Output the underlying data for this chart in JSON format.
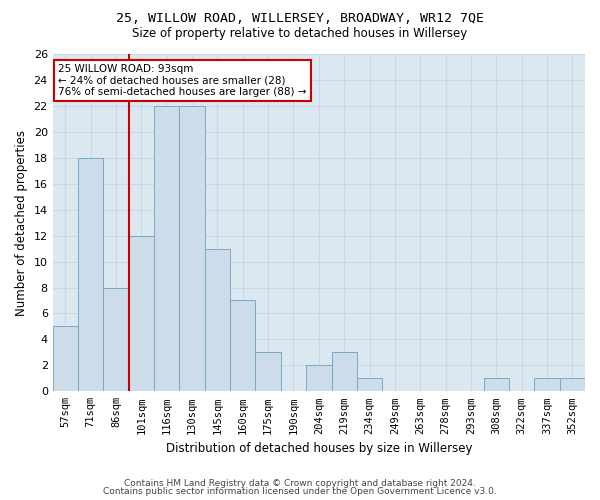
{
  "title1": "25, WILLOW ROAD, WILLERSEY, BROADWAY, WR12 7QE",
  "title2": "Size of property relative to detached houses in Willersey",
  "xlabel": "Distribution of detached houses by size in Willersey",
  "ylabel": "Number of detached properties",
  "categories": [
    "57sqm",
    "71sqm",
    "86sqm",
    "101sqm",
    "116sqm",
    "130sqm",
    "145sqm",
    "160sqm",
    "175sqm",
    "190sqm",
    "204sqm",
    "219sqm",
    "234sqm",
    "249sqm",
    "263sqm",
    "278sqm",
    "293sqm",
    "308sqm",
    "322sqm",
    "337sqm",
    "352sqm"
  ],
  "values": [
    5,
    18,
    8,
    12,
    22,
    22,
    11,
    7,
    3,
    0,
    2,
    3,
    1,
    0,
    0,
    0,
    0,
    1,
    0,
    1,
    1
  ],
  "bar_color": "#ccdce8",
  "bar_edge_color": "#7aaac8",
  "vline_color": "#cc0000",
  "annotation_text": "25 WILLOW ROAD: 93sqm\n← 24% of detached houses are smaller (28)\n76% of semi-detached houses are larger (88) →",
  "annotation_box_color": "#ffffff",
  "annotation_box_edge": "#cc0000",
  "grid_color": "#c8d8e8",
  "background_color": "#dce8f0",
  "ylim": [
    0,
    26
  ],
  "yticks": [
    0,
    2,
    4,
    6,
    8,
    10,
    12,
    14,
    16,
    18,
    20,
    22,
    24,
    26
  ],
  "footer1": "Contains HM Land Registry data © Crown copyright and database right 2024.",
  "footer2": "Contains public sector information licensed under the Open Government Licence v3.0."
}
